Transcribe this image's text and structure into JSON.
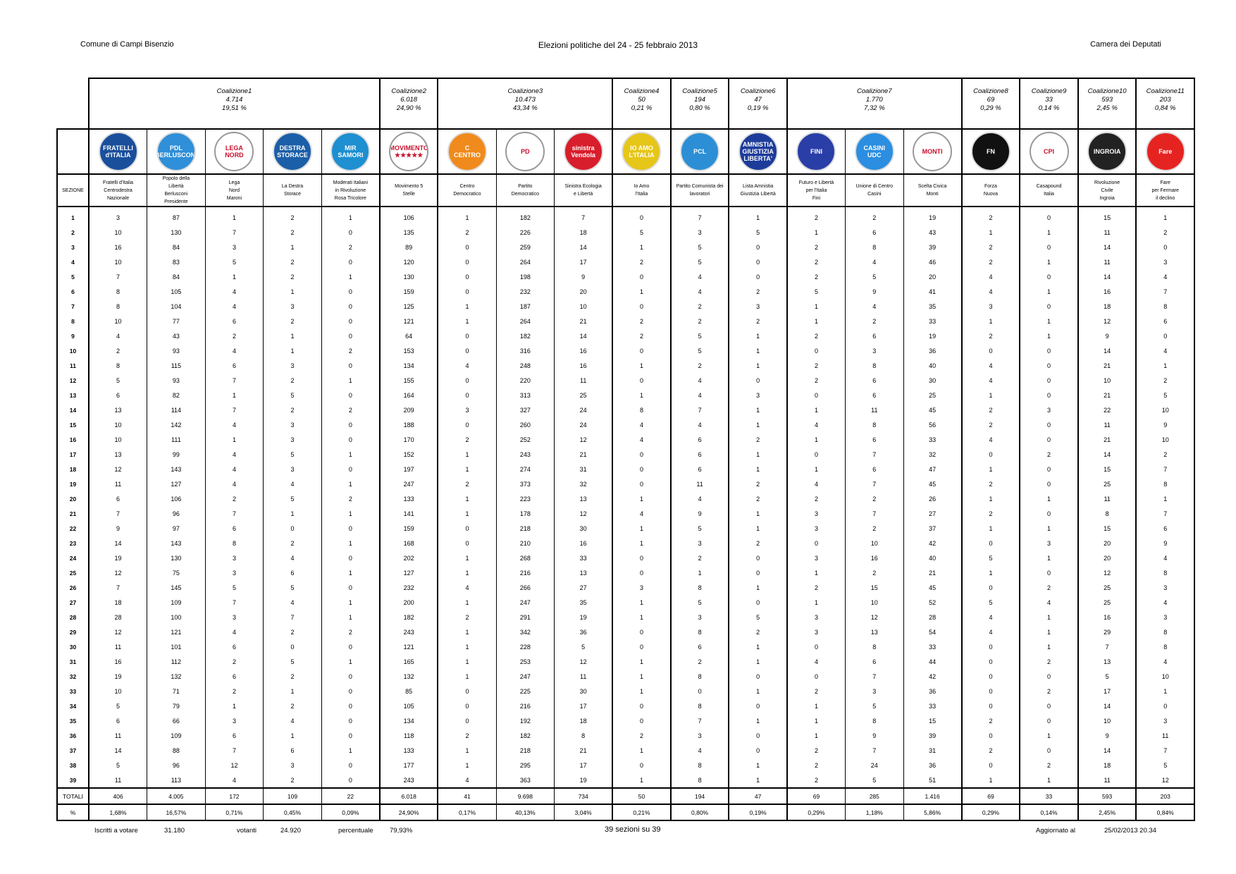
{
  "header": {
    "left": "Comune di Campi Bisenzio",
    "center": "Elezioni politiche del 24 - 25 febbraio 2013",
    "right": "Camera dei Deputati"
  },
  "table": {
    "sezione_label": "SEZIONE",
    "totali_label": "TOTALI",
    "percent_label": "%",
    "coalitions": [
      {
        "name": "Coalizione1",
        "votes": "4.714",
        "percent": "19,51 %",
        "span": 5
      },
      {
        "name": "Coalizione2",
        "votes": "6.018",
        "percent": "24,90 %",
        "span": 1
      },
      {
        "name": "Coalizione3",
        "votes": "10.473",
        "percent": "43,34 %",
        "span": 3
      },
      {
        "name": "Coalizione4",
        "votes": "50",
        "percent": "0,21 %",
        "span": 1
      },
      {
        "name": "Coalizione5",
        "votes": "194",
        "percent": "0,80 %",
        "span": 1
      },
      {
        "name": "Coalizione6",
        "votes": "47",
        "percent": "0,19 %",
        "span": 1
      },
      {
        "name": "Coalizione7",
        "votes": "1.770",
        "percent": "7,32 %",
        "span": 3
      },
      {
        "name": "Coalizione8",
        "votes": "69",
        "percent": "0,29 %",
        "span": 1
      },
      {
        "name": "Coalizione9",
        "votes": "33",
        "percent": "0,14 %",
        "span": 1
      },
      {
        "name": "Coalizione10",
        "votes": "593",
        "percent": "2,45 %",
        "span": 1
      },
      {
        "name": "Coalizione11",
        "votes": "203",
        "percent": "0,84 %",
        "span": 1
      }
    ],
    "parties": [
      {
        "name": "Fratelli d'Italia\nCentrodestra\nNazionale",
        "logo_text": "FRATELLI\nd'ITALIA",
        "color": "#1a4f9c"
      },
      {
        "name": "Popolo della\nLibertà\nBerlusconi\nPresidente",
        "logo_text": "PDL\nBERLUSCONI",
        "color": "#2f8fd8"
      },
      {
        "name": "Lega\nNord\nMaroni",
        "logo_text": "LEGA\nNORD",
        "color": "#ffffff"
      },
      {
        "name": "La Destra\nStorace",
        "logo_text": "DESTRA\nSTORACE",
        "color": "#1b5fa8"
      },
      {
        "name": "Moderati Italiani\nin Rivoluzione\nRosa Tricolore",
        "logo_text": "MIR\nSAMORI",
        "color": "#1e8fd0"
      },
      {
        "name": "Movimento 5\nStelle",
        "logo_text": "MOVIMENTO\n★★★★★",
        "color": "#ffffff"
      },
      {
        "name": "Centro\nDemocratico",
        "logo_text": "C\nCENTRO",
        "color": "#f08a1c"
      },
      {
        "name": "Partito\nDemocratico",
        "logo_text": "PD",
        "color": "#ffffff"
      },
      {
        "name": "Sinistra Ecologia\ne Libertà",
        "logo_text": "sinistra\nVendola",
        "color": "#d81e2c"
      },
      {
        "name": "Io Amo\nl'Italia",
        "logo_text": "IO AMO\nL'ITALIA",
        "color": "#e6c619"
      },
      {
        "name": "Partito Comunista dei\nlavoratori",
        "logo_text": "PCL",
        "color": "#2c8fd6"
      },
      {
        "name": "Lista Amnistia\nGiustizia Libertà",
        "logo_text": "AMNISTIA\nGIUSTIZIA\nLIBERTA'",
        "color": "#1d3c9a"
      },
      {
        "name": "Futuro e Libertà\nper l'Italia\nFini",
        "logo_text": "FINI",
        "color": "#2a3ea8"
      },
      {
        "name": "Unione di Centro\nCasini",
        "logo_text": "CASINI\nUDC",
        "color": "#2b8ee0"
      },
      {
        "name": "Scelta Civica\nMonti",
        "logo_text": "MONTI",
        "color": "#ffffff"
      },
      {
        "name": "Forza\nNuova",
        "logo_text": "FN",
        "color": "#111111"
      },
      {
        "name": "Casapound\nItalia",
        "logo_text": "CPI",
        "color": "#ffffff"
      },
      {
        "name": "Rivoluzione\nCivile\nIngroia",
        "logo_text": "INGROIA",
        "color": "#222222"
      },
      {
        "name": "Fare\nper Fermare\nil declino",
        "logo_text": "Fare",
        "color": "#e52421"
      }
    ],
    "rows": [
      [
        "1",
        "3",
        "87",
        "1",
        "2",
        "1",
        "106",
        "1",
        "182",
        "7",
        "0",
        "7",
        "1",
        "2",
        "2",
        "19",
        "2",
        "0",
        "15",
        "1"
      ],
      [
        "2",
        "10",
        "130",
        "7",
        "2",
        "0",
        "135",
        "2",
        "226",
        "18",
        "5",
        "3",
        "5",
        "1",
        "6",
        "43",
        "1",
        "1",
        "11",
        "2"
      ],
      [
        "3",
        "16",
        "84",
        "3",
        "1",
        "2",
        "89",
        "0",
        "259",
        "14",
        "1",
        "5",
        "0",
        "2",
        "8",
        "39",
        "2",
        "0",
        "14",
        "0"
      ],
      [
        "4",
        "10",
        "83",
        "5",
        "2",
        "0",
        "120",
        "0",
        "264",
        "17",
        "2",
        "5",
        "0",
        "2",
        "4",
        "46",
        "2",
        "1",
        "11",
        "3"
      ],
      [
        "5",
        "7",
        "84",
        "1",
        "2",
        "1",
        "130",
        "0",
        "198",
        "9",
        "0",
        "4",
        "0",
        "2",
        "5",
        "20",
        "4",
        "0",
        "14",
        "4"
      ],
      [
        "6",
        "8",
        "105",
        "4",
        "1",
        "0",
        "159",
        "0",
        "232",
        "20",
        "1",
        "4",
        "2",
        "5",
        "9",
        "41",
        "4",
        "1",
        "16",
        "7"
      ],
      [
        "7",
        "8",
        "104",
        "4",
        "3",
        "0",
        "125",
        "1",
        "187",
        "10",
        "0",
        "2",
        "3",
        "1",
        "4",
        "35",
        "3",
        "0",
        "18",
        "8"
      ],
      [
        "8",
        "10",
        "77",
        "6",
        "2",
        "0",
        "121",
        "1",
        "264",
        "21",
        "2",
        "2",
        "2",
        "1",
        "2",
        "33",
        "1",
        "1",
        "12",
        "6"
      ],
      [
        "9",
        "4",
        "43",
        "2",
        "1",
        "0",
        "64",
        "0",
        "182",
        "14",
        "2",
        "5",
        "1",
        "2",
        "6",
        "19",
        "2",
        "1",
        "9",
        "0"
      ],
      [
        "10",
        "2",
        "93",
        "4",
        "1",
        "2",
        "153",
        "0",
        "316",
        "16",
        "0",
        "5",
        "1",
        "0",
        "3",
        "36",
        "0",
        "0",
        "14",
        "4"
      ],
      [
        "11",
        "8",
        "115",
        "6",
        "3",
        "0",
        "134",
        "4",
        "248",
        "16",
        "1",
        "2",
        "1",
        "2",
        "8",
        "40",
        "4",
        "0",
        "21",
        "1"
      ],
      [
        "12",
        "5",
        "93",
        "7",
        "2",
        "1",
        "155",
        "0",
        "220",
        "11",
        "0",
        "4",
        "0",
        "2",
        "6",
        "30",
        "4",
        "0",
        "10",
        "2"
      ],
      [
        "13",
        "6",
        "82",
        "1",
        "5",
        "0",
        "164",
        "0",
        "313",
        "25",
        "1",
        "4",
        "3",
        "0",
        "6",
        "25",
        "1",
        "0",
        "21",
        "5"
      ],
      [
        "14",
        "13",
        "114",
        "7",
        "2",
        "2",
        "209",
        "3",
        "327",
        "24",
        "8",
        "7",
        "1",
        "1",
        "11",
        "45",
        "2",
        "3",
        "22",
        "10"
      ],
      [
        "15",
        "10",
        "142",
        "4",
        "3",
        "0",
        "188",
        "0",
        "260",
        "24",
        "4",
        "4",
        "1",
        "4",
        "8",
        "56",
        "2",
        "0",
        "11",
        "9"
      ],
      [
        "16",
        "10",
        "111",
        "1",
        "3",
        "0",
        "170",
        "2",
        "252",
        "12",
        "4",
        "6",
        "2",
        "1",
        "6",
        "33",
        "4",
        "0",
        "21",
        "10"
      ],
      [
        "17",
        "13",
        "99",
        "4",
        "5",
        "1",
        "152",
        "1",
        "243",
        "21",
        "0",
        "6",
        "1",
        "0",
        "7",
        "32",
        "0",
        "2",
        "14",
        "2"
      ],
      [
        "18",
        "12",
        "143",
        "4",
        "3",
        "0",
        "197",
        "1",
        "274",
        "31",
        "0",
        "6",
        "1",
        "1",
        "6",
        "47",
        "1",
        "0",
        "15",
        "7"
      ],
      [
        "19",
        "11",
        "127",
        "4",
        "4",
        "1",
        "247",
        "2",
        "373",
        "32",
        "0",
        "11",
        "2",
        "4",
        "7",
        "45",
        "2",
        "0",
        "25",
        "8"
      ],
      [
        "20",
        "6",
        "106",
        "2",
        "5",
        "2",
        "133",
        "1",
        "223",
        "13",
        "1",
        "4",
        "2",
        "2",
        "2",
        "26",
        "1",
        "1",
        "11",
        "1"
      ],
      [
        "21",
        "7",
        "96",
        "7",
        "1",
        "1",
        "141",
        "1",
        "178",
        "12",
        "4",
        "9",
        "1",
        "3",
        "7",
        "27",
        "2",
        "0",
        "8",
        "7"
      ],
      [
        "22",
        "9",
        "97",
        "6",
        "0",
        "0",
        "159",
        "0",
        "218",
        "30",
        "1",
        "5",
        "1",
        "3",
        "2",
        "37",
        "1",
        "1",
        "15",
        "6"
      ],
      [
        "23",
        "14",
        "143",
        "8",
        "2",
        "1",
        "168",
        "0",
        "210",
        "16",
        "1",
        "3",
        "2",
        "0",
        "10",
        "42",
        "0",
        "3",
        "20",
        "9"
      ],
      [
        "24",
        "19",
        "130",
        "3",
        "4",
        "0",
        "202",
        "1",
        "268",
        "33",
        "0",
        "2",
        "0",
        "3",
        "16",
        "40",
        "5",
        "1",
        "20",
        "4"
      ],
      [
        "25",
        "12",
        "75",
        "3",
        "6",
        "1",
        "127",
        "1",
        "216",
        "13",
        "0",
        "1",
        "0",
        "1",
        "2",
        "21",
        "1",
        "0",
        "12",
        "8"
      ],
      [
        "26",
        "7",
        "145",
        "5",
        "5",
        "0",
        "232",
        "4",
        "266",
        "27",
        "3",
        "8",
        "1",
        "2",
        "15",
        "45",
        "0",
        "2",
        "25",
        "3"
      ],
      [
        "27",
        "18",
        "109",
        "7",
        "4",
        "1",
        "200",
        "1",
        "247",
        "35",
        "1",
        "5",
        "0",
        "1",
        "10",
        "52",
        "5",
        "4",
        "25",
        "4"
      ],
      [
        "28",
        "28",
        "100",
        "3",
        "7",
        "1",
        "182",
        "2",
        "291",
        "19",
        "1",
        "3",
        "5",
        "3",
        "12",
        "28",
        "4",
        "1",
        "16",
        "3"
      ],
      [
        "29",
        "12",
        "121",
        "4",
        "2",
        "2",
        "243",
        "1",
        "342",
        "36",
        "0",
        "8",
        "2",
        "3",
        "13",
        "54",
        "4",
        "1",
        "29",
        "8"
      ],
      [
        "30",
        "11",
        "101",
        "6",
        "0",
        "0",
        "121",
        "1",
        "228",
        "5",
        "0",
        "6",
        "1",
        "0",
        "8",
        "33",
        "0",
        "1",
        "7",
        "8"
      ],
      [
        "31",
        "16",
        "112",
        "2",
        "5",
        "1",
        "165",
        "1",
        "253",
        "12",
        "1",
        "2",
        "1",
        "4",
        "6",
        "44",
        "0",
        "2",
        "13",
        "4"
      ],
      [
        "32",
        "19",
        "132",
        "6",
        "2",
        "0",
        "132",
        "1",
        "247",
        "11",
        "1",
        "8",
        "0",
        "0",
        "7",
        "42",
        "0",
        "0",
        "5",
        "10"
      ],
      [
        "33",
        "10",
        "71",
        "2",
        "1",
        "0",
        "85",
        "0",
        "225",
        "30",
        "1",
        "0",
        "1",
        "2",
        "3",
        "36",
        "0",
        "2",
        "17",
        "1"
      ],
      [
        "34",
        "5",
        "79",
        "1",
        "2",
        "0",
        "105",
        "0",
        "216",
        "17",
        "0",
        "8",
        "0",
        "1",
        "5",
        "33",
        "0",
        "0",
        "14",
        "0"
      ],
      [
        "35",
        "6",
        "66",
        "3",
        "4",
        "0",
        "134",
        "0",
        "192",
        "18",
        "0",
        "7",
        "1",
        "1",
        "8",
        "15",
        "2",
        "0",
        "10",
        "3"
      ],
      [
        "36",
        "11",
        "109",
        "6",
        "1",
        "0",
        "118",
        "2",
        "182",
        "8",
        "2",
        "3",
        "0",
        "1",
        "9",
        "39",
        "0",
        "1",
        "9",
        "11"
      ],
      [
        "37",
        "14",
        "88",
        "7",
        "6",
        "1",
        "133",
        "1",
        "218",
        "21",
        "1",
        "4",
        "0",
        "2",
        "7",
        "31",
        "2",
        "0",
        "14",
        "7"
      ],
      [
        "38",
        "5",
        "96",
        "12",
        "3",
        "0",
        "177",
        "1",
        "295",
        "17",
        "0",
        "8",
        "1",
        "2",
        "24",
        "36",
        "0",
        "2",
        "18",
        "5"
      ],
      [
        "39",
        "11",
        "113",
        "4",
        "2",
        "0",
        "243",
        "4",
        "363",
        "19",
        "1",
        "8",
        "1",
        "2",
        "5",
        "51",
        "1",
        "1",
        "11",
        "12"
      ]
    ],
    "totals": [
      "406",
      "4.005",
      "172",
      "109",
      "22",
      "6.018",
      "41",
      "9.698",
      "734",
      "50",
      "194",
      "47",
      "69",
      "285",
      "1.416",
      "69",
      "33",
      "593",
      "203"
    ],
    "percents": [
      "1,68%",
      "16,57%",
      "0,71%",
      "0,45%",
      "0,09%",
      "24,90%",
      "0,17%",
      "40,13%",
      "3,04%",
      "0,21%",
      "0,80%",
      "0,19%",
      "0,29%",
      "1,18%",
      "5,86%",
      "0,29%",
      "0,14%",
      "2,45%",
      "0,84%"
    ]
  },
  "footer": {
    "iscritti_label": "Iscritti a votare",
    "iscritti_value": "31.180",
    "votanti_label": "votanti",
    "votanti_value": "24.920",
    "percentuale_label": "percentuale",
    "percentuale_value": "79,93%",
    "sezioni": "39 sezioni su 39",
    "aggiornato_label": "Aggiornato al",
    "aggiornato_value": "25/02/2013 20.34"
  }
}
